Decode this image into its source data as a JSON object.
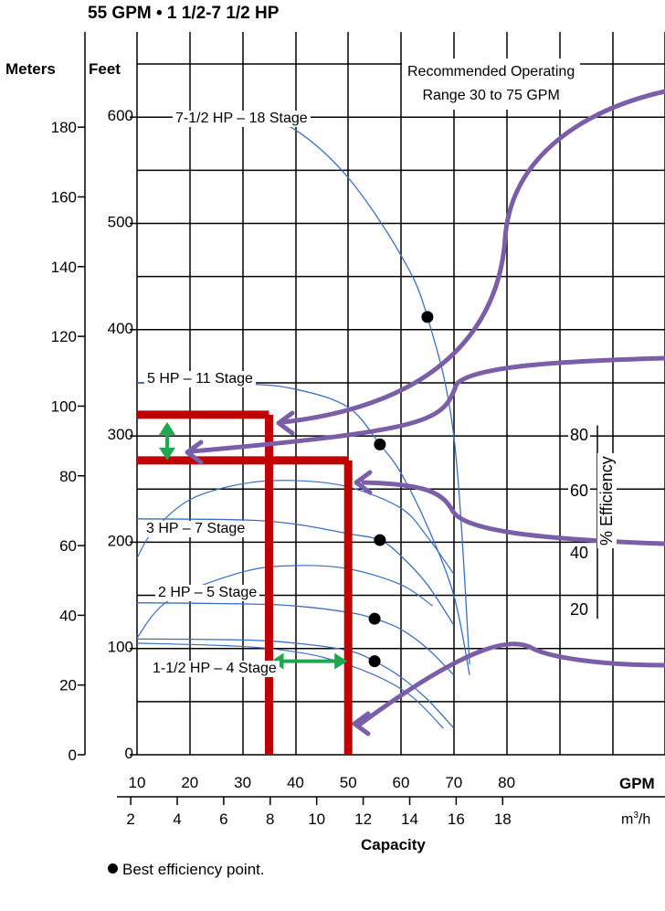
{
  "header": {
    "title": "55 GPM • 1 1/2-7 1/2 HP",
    "meters_label": "Meters",
    "feet_label": "Feet"
  },
  "footer": {
    "x_label": "Capacity",
    "gpm_unit": "GPM",
    "m3h_unit_base": "m",
    "m3h_unit_exp": "3",
    "m3h_unit_tail": "/h",
    "legend_note": "Best efficiency point."
  },
  "range_label": {
    "line1": "Recommended Operating",
    "line2": "Range 30 to 75 GPM"
  },
  "efficiency_axis": {
    "label": "% Efficiency",
    "ticks": [
      "80",
      "60",
      "40",
      "20"
    ]
  },
  "colors": {
    "curve": "#3a6fc4",
    "operating_lines": "#c00000",
    "arrows_green": "#1fa84f",
    "callouts": "#7a5ea8",
    "grid": "#000000"
  },
  "chart_data": {
    "type": "line",
    "title": "55 GPM • 1 1/2-7 1/2 HP",
    "xlabel": "Capacity",
    "x_units": "GPM",
    "xlim": [
      10,
      85
    ],
    "x_ticks": [
      "10",
      "20",
      "30",
      "40",
      "50",
      "60",
      "70",
      "80"
    ],
    "ylabel_primary": "Feet",
    "ylim_feet": [
      0,
      650
    ],
    "y_ticks_feet": [
      "0",
      "100",
      "200",
      "300",
      "400",
      "500",
      "600"
    ],
    "ylabel_secondary": "Meters",
    "y_ticks_meters": [
      "0",
      "20",
      "40",
      "60",
      "80",
      "100",
      "120",
      "140",
      "160",
      "180"
    ],
    "x2label": "m3/h",
    "x2_ticks": [
      "2",
      "4",
      "6",
      "8",
      "10",
      "12",
      "14",
      "16",
      "18"
    ],
    "grid": true,
    "head_curves": [
      {
        "name": "7-1/2 HP – 18 Stage",
        "x": [
          31,
          40,
          50,
          60,
          65,
          70,
          73
        ],
        "y": [
          605,
          588,
          543,
          470,
          412,
          300,
          85
        ],
        "bep": {
          "x": 65,
          "y": 412
        }
      },
      {
        "name": "5 HP – 11 Stage",
        "x": [
          10,
          30,
          40,
          50,
          56,
          60,
          65,
          70,
          73
        ],
        "y": [
          350,
          349,
          344,
          327,
          292,
          265,
          215,
          150,
          75
        ],
        "bep": {
          "x": 56,
          "y": 292
        }
      },
      {
        "name": "3 HP – 7 Stage",
        "x": [
          10,
          30,
          40,
          50,
          56,
          60,
          65,
          70
        ],
        "y": [
          222,
          221,
          217,
          208,
          202,
          187,
          160,
          122
        ],
        "bep": {
          "x": 56,
          "y": 202
        }
      },
      {
        "name": "2 HP – 5 Stage",
        "x": [
          10,
          30,
          40,
          50,
          55,
          60,
          65,
          70
        ],
        "y": [
          143,
          142,
          140,
          134,
          128,
          118,
          100,
          75
        ],
        "bep": {
          "x": 55,
          "y": 128
        }
      },
      {
        "name": "1-1/2 HP – 4 Stage",
        "x": [
          10,
          30,
          40,
          50,
          55,
          60,
          65,
          70
        ],
        "y": [
          109,
          108,
          105,
          98,
          88,
          73,
          52,
          25
        ],
        "bep": {
          "x": 55,
          "y": 88
        }
      }
    ],
    "efficiency_curves": [
      {
        "x": [
          10,
          13,
          20,
          30,
          40,
          50,
          60,
          65,
          70
        ],
        "y": [
          185,
          210,
          240,
          255,
          258,
          252,
          232,
          205,
          170
        ]
      },
      {
        "x": [
          10,
          16,
          30,
          40,
          50,
          60,
          66
        ],
        "y": [
          110,
          145,
          172,
          178,
          175,
          160,
          140
        ]
      },
      {
        "x": [
          10,
          25,
          35,
          45,
          55,
          62,
          68
        ],
        "y": [
          105,
          103,
          100,
          92,
          75,
          55,
          25
        ]
      }
    ],
    "operating_point_lines": [
      {
        "head_feet": 320,
        "capacity_gpm": 35
      },
      {
        "head_feet": 277,
        "capacity_gpm": 50
      }
    ]
  }
}
